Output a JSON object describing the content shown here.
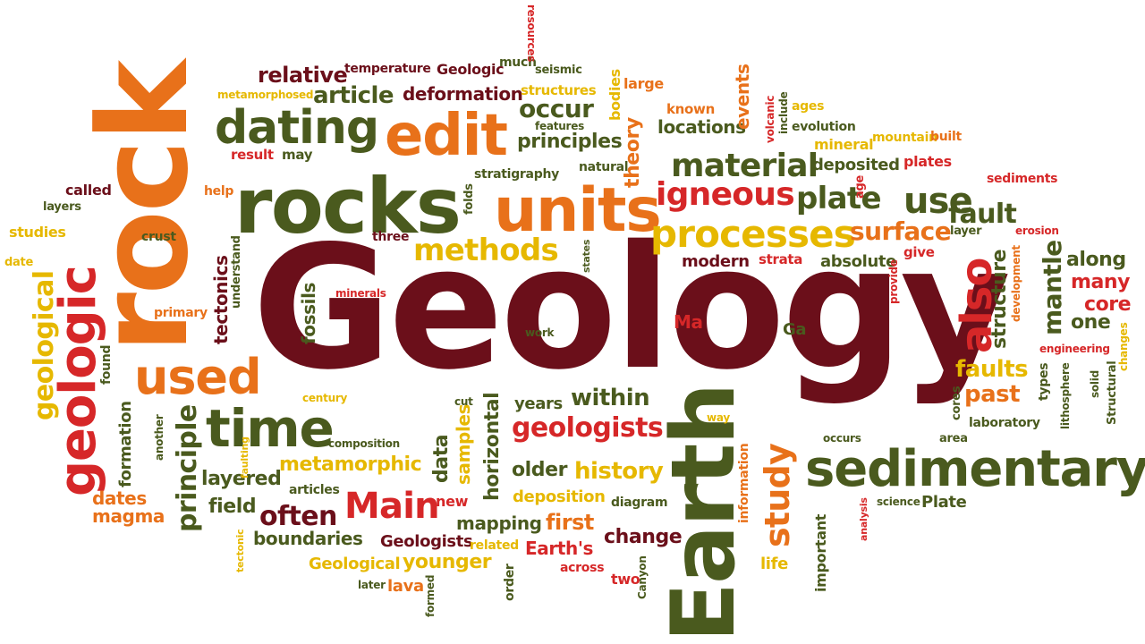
{
  "colors": {
    "maroon": "#6b0f1a",
    "red": "#d62728",
    "orange": "#e8711a",
    "yellow": "#e6b800",
    "olive": "#4a5a1e",
    "darkgreen": "#3a4a12"
  },
  "words": [
    {
      "text": "Geology",
      "color": "maroon"
    },
    {
      "text": "rock",
      "color": "orange"
    },
    {
      "text": "Earth",
      "color": "olive"
    },
    {
      "text": "rocks",
      "color": "olive"
    },
    {
      "text": "sedimentary",
      "color": "olive"
    },
    {
      "text": "units",
      "color": "orange"
    },
    {
      "text": "edit",
      "color": "orange"
    },
    {
      "text": "dating",
      "color": "olive"
    },
    {
      "text": "time",
      "color": "olive"
    },
    {
      "text": "used",
      "color": "orange"
    },
    {
      "text": "geologic",
      "color": "red"
    },
    {
      "text": "processes",
      "color": "yellow"
    },
    {
      "text": "material",
      "color": "olive"
    },
    {
      "text": "igneous",
      "color": "red"
    },
    {
      "text": "plate",
      "color": "olive"
    },
    {
      "text": "use",
      "color": "olive"
    },
    {
      "text": "fault",
      "color": "olive"
    },
    {
      "text": "also",
      "color": "red"
    },
    {
      "text": "methods",
      "color": "yellow"
    },
    {
      "text": "surface",
      "color": "orange"
    },
    {
      "text": "study",
      "color": "orange"
    },
    {
      "text": "Main",
      "color": "red"
    },
    {
      "text": "geologists",
      "color": "red"
    },
    {
      "text": "principle",
      "color": "olive"
    },
    {
      "text": "often",
      "color": "maroon"
    },
    {
      "text": "layered",
      "color": "olive"
    },
    {
      "text": "metamorphic",
      "color": "yellow"
    },
    {
      "text": "history",
      "color": "yellow"
    },
    {
      "text": "older",
      "color": "olive"
    },
    {
      "text": "within",
      "color": "olive"
    },
    {
      "text": "years",
      "color": "olive"
    },
    {
      "text": "horizontal",
      "color": "olive"
    },
    {
      "text": "data",
      "color": "olive"
    },
    {
      "text": "samples",
      "color": "yellow"
    },
    {
      "text": "fossils",
      "color": "olive"
    },
    {
      "text": "occur",
      "color": "olive"
    },
    {
      "text": "principles",
      "color": "olive"
    },
    {
      "text": "article",
      "color": "olive"
    },
    {
      "text": "relative",
      "color": "maroon"
    },
    {
      "text": "deformation",
      "color": "maroon"
    },
    {
      "text": "temperature",
      "color": "maroon"
    },
    {
      "text": "Geologic",
      "color": "maroon"
    },
    {
      "text": "much",
      "color": "olive"
    },
    {
      "text": "resources",
      "color": "red"
    },
    {
      "text": "seismic",
      "color": "olive"
    },
    {
      "text": "metamorphosed",
      "color": "yellow"
    },
    {
      "text": "structures",
      "color": "yellow"
    },
    {
      "text": "features",
      "color": "olive"
    },
    {
      "text": "bodies",
      "color": "yellow"
    },
    {
      "text": "large",
      "color": "orange"
    },
    {
      "text": "theory",
      "color": "orange"
    },
    {
      "text": "known",
      "color": "orange"
    },
    {
      "text": "locations",
      "color": "olive"
    },
    {
      "text": "events",
      "color": "orange"
    },
    {
      "text": "volcanic",
      "color": "red"
    },
    {
      "text": "include",
      "color": "olive"
    },
    {
      "text": "ages",
      "color": "yellow"
    },
    {
      "text": "evolution",
      "color": "olive"
    },
    {
      "text": "mineral",
      "color": "yellow"
    },
    {
      "text": "mountain",
      "color": "yellow"
    },
    {
      "text": "built",
      "color": "orange"
    },
    {
      "text": "deposited",
      "color": "olive"
    },
    {
      "text": "plates",
      "color": "red"
    },
    {
      "text": "sediments",
      "color": "red"
    },
    {
      "text": "result",
      "color": "red"
    },
    {
      "text": "may",
      "color": "olive"
    },
    {
      "text": "natural",
      "color": "olive"
    },
    {
      "text": "stratigraphy",
      "color": "olive"
    },
    {
      "text": "folds",
      "color": "olive"
    },
    {
      "text": "age",
      "color": "red"
    },
    {
      "text": "called",
      "color": "maroon"
    },
    {
      "text": "help",
      "color": "orange"
    },
    {
      "text": "layers",
      "color": "olive"
    },
    {
      "text": "studies",
      "color": "yellow"
    },
    {
      "text": "date",
      "color": "yellow"
    },
    {
      "text": "crust",
      "color": "olive"
    },
    {
      "text": "three",
      "color": "maroon"
    },
    {
      "text": "tectonics",
      "color": "maroon"
    },
    {
      "text": "understand",
      "color": "olive"
    },
    {
      "text": "states",
      "color": "olive"
    },
    {
      "text": "modern",
      "color": "maroon"
    },
    {
      "text": "strata",
      "color": "red"
    },
    {
      "text": "absolute",
      "color": "olive"
    },
    {
      "text": "give",
      "color": "red"
    },
    {
      "text": "layer",
      "color": "olive"
    },
    {
      "text": "erosion",
      "color": "red"
    },
    {
      "text": "structure",
      "color": "olive"
    },
    {
      "text": "development",
      "color": "orange"
    },
    {
      "text": "mantle",
      "color": "olive"
    },
    {
      "text": "along",
      "color": "olive"
    },
    {
      "text": "many",
      "color": "red"
    },
    {
      "text": "core",
      "color": "red"
    },
    {
      "text": "one",
      "color": "olive"
    },
    {
      "text": "provide",
      "color": "red"
    },
    {
      "text": "geological",
      "color": "yellow"
    },
    {
      "text": "primary",
      "color": "orange"
    },
    {
      "text": "minerals",
      "color": "red"
    },
    {
      "text": "work",
      "color": "olive"
    },
    {
      "text": "Ma",
      "color": "red"
    },
    {
      "text": "Ga",
      "color": "olive"
    },
    {
      "text": "found",
      "color": "olive"
    },
    {
      "text": "century",
      "color": "yellow"
    },
    {
      "text": "cut",
      "color": "olive"
    },
    {
      "text": "faults",
      "color": "yellow"
    },
    {
      "text": "past",
      "color": "orange"
    },
    {
      "text": "cores",
      "color": "olive"
    },
    {
      "text": "laboratory",
      "color": "olive"
    },
    {
      "text": "types",
      "color": "olive"
    },
    {
      "text": "lithosphere",
      "color": "olive"
    },
    {
      "text": "solid",
      "color": "olive"
    },
    {
      "text": "Structural",
      "color": "olive"
    },
    {
      "text": "changes",
      "color": "yellow"
    },
    {
      "text": "engineering",
      "color": "red"
    },
    {
      "text": "formation",
      "color": "olive"
    },
    {
      "text": "another",
      "color": "olive"
    },
    {
      "text": "composition",
      "color": "olive"
    },
    {
      "text": "faulting",
      "color": "yellow"
    },
    {
      "text": "way",
      "color": "yellow"
    },
    {
      "text": "information",
      "color": "orange"
    },
    {
      "text": "occurs",
      "color": "olive"
    },
    {
      "text": "area",
      "color": "olive"
    },
    {
      "text": "articles",
      "color": "olive"
    },
    {
      "text": "new",
      "color": "red"
    },
    {
      "text": "deposition",
      "color": "yellow"
    },
    {
      "text": "diagram",
      "color": "olive"
    },
    {
      "text": "dates",
      "color": "orange"
    },
    {
      "text": "magma",
      "color": "orange"
    },
    {
      "text": "field",
      "color": "olive"
    },
    {
      "text": "boundaries",
      "color": "olive"
    },
    {
      "text": "mapping",
      "color": "olive"
    },
    {
      "text": "first",
      "color": "orange"
    },
    {
      "text": "change",
      "color": "maroon"
    },
    {
      "text": "Geologists",
      "color": "maroon"
    },
    {
      "text": "related",
      "color": "yellow"
    },
    {
      "text": "Earth's",
      "color": "red"
    },
    {
      "text": "Geological",
      "color": "yellow"
    },
    {
      "text": "younger",
      "color": "yellow"
    },
    {
      "text": "order",
      "color": "olive"
    },
    {
      "text": "across",
      "color": "red"
    },
    {
      "text": "two",
      "color": "red"
    },
    {
      "text": "Canyon",
      "color": "olive"
    },
    {
      "text": "later",
      "color": "olive"
    },
    {
      "text": "lava",
      "color": "orange"
    },
    {
      "text": "formed",
      "color": "olive"
    },
    {
      "text": "tectonic",
      "color": "yellow"
    },
    {
      "text": "life",
      "color": "yellow"
    },
    {
      "text": "important",
      "color": "olive"
    },
    {
      "text": "analysis",
      "color": "red"
    },
    {
      "text": "science",
      "color": "olive"
    },
    {
      "text": "Plate",
      "color": "olive"
    }
  ]
}
